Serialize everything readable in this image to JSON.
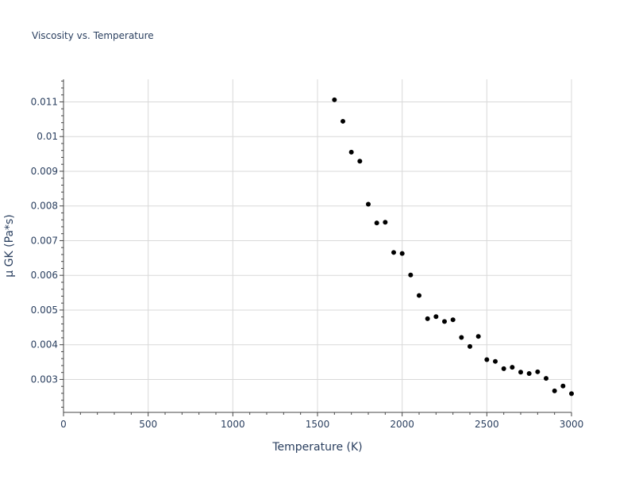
{
  "chart_data": {
    "type": "scatter",
    "title": "Viscosity vs. Temperature",
    "xlabel": "Temperature (K)",
    "ylabel": "μ GK (Pa*s)",
    "xlim": [
      0,
      3000
    ],
    "ylim": [
      0.00205,
      0.01165
    ],
    "x_ticks": [
      0,
      500,
      1000,
      1500,
      2000,
      2500,
      3000
    ],
    "x_tick_labels": [
      "0",
      "500",
      "1000",
      "1500",
      "2000",
      "2500",
      "3000"
    ],
    "y_ticks": [
      0.003,
      0.004,
      0.005,
      0.006,
      0.007,
      0.008,
      0.009,
      0.01,
      0.011
    ],
    "y_tick_labels": [
      "0.003",
      "0.004",
      "0.005",
      "0.006",
      "0.007",
      "0.008",
      "0.009",
      "0.01",
      "0.011"
    ],
    "grid": true,
    "legend": false,
    "series": [
      {
        "color": "#000000",
        "x": [
          1600,
          1650,
          1700,
          1750,
          1800,
          1850,
          1900,
          1950,
          2000,
          2050,
          2100,
          2150,
          2200,
          2250,
          2300,
          2350,
          2400,
          2450,
          2500,
          2550,
          2600,
          2650,
          2700,
          2750,
          2800,
          2850,
          2900,
          2950,
          3000
        ],
        "y": [
          0.01106,
          0.01044,
          0.00955,
          0.00929,
          0.00805,
          0.00751,
          0.00753,
          0.00666,
          0.00663,
          0.00601,
          0.00542,
          0.00475,
          0.00481,
          0.00467,
          0.00472,
          0.00421,
          0.00395,
          0.00424,
          0.00357,
          0.00352,
          0.00331,
          0.00335,
          0.00321,
          0.00317,
          0.00322,
          0.00303,
          0.00267,
          0.00281,
          0.00259
        ]
      }
    ]
  }
}
